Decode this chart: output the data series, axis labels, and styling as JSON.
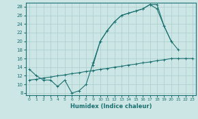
{
  "xlabel": "Humidex (Indice chaleur)",
  "bg_color": "#cce5e5",
  "grid_color": "#aacccc",
  "line_color": "#1a7070",
  "xlim": [
    -0.5,
    23.5
  ],
  "ylim": [
    7.5,
    29
  ],
  "xticks": [
    0,
    1,
    2,
    3,
    4,
    5,
    6,
    7,
    8,
    9,
    10,
    11,
    12,
    13,
    14,
    15,
    16,
    17,
    18,
    19,
    20,
    21,
    22,
    23
  ],
  "yticks": [
    8,
    10,
    12,
    14,
    16,
    18,
    20,
    22,
    24,
    26,
    28
  ],
  "line_main_x": [
    0,
    1,
    2,
    3,
    4,
    5,
    6,
    7,
    8,
    9,
    10,
    11,
    12,
    13,
    14,
    15,
    16,
    17,
    18,
    19,
    20,
    21
  ],
  "line_main_y": [
    13.5,
    12.0,
    11.0,
    11.0,
    9.5,
    11.0,
    8.0,
    8.5,
    10.0,
    15.0,
    20.0,
    22.5,
    24.5,
    26.0,
    26.5,
    27.0,
    27.5,
    28.5,
    27.5,
    23.5,
    20.0,
    18.0
  ],
  "line_upper_x": [
    9,
    10,
    11,
    12,
    13,
    14,
    15,
    16,
    17,
    18,
    19,
    20
  ],
  "line_upper_y": [
    14.5,
    20.0,
    22.5,
    24.5,
    26.0,
    26.5,
    27.0,
    27.5,
    28.5,
    28.5,
    23.5,
    20.0
  ],
  "line_lower_x": [
    0,
    1,
    2,
    3,
    4,
    5,
    6,
    7,
    8,
    9,
    10,
    11,
    12,
    13,
    14,
    15,
    16,
    17,
    18,
    19,
    20,
    21,
    22,
    23
  ],
  "line_lower_y": [
    11.0,
    11.2,
    11.5,
    11.7,
    12.0,
    12.2,
    12.5,
    12.7,
    13.0,
    13.2,
    13.5,
    13.7,
    14.0,
    14.2,
    14.5,
    14.7,
    15.0,
    15.2,
    15.5,
    15.7,
    16.0,
    16.0,
    16.0,
    16.0
  ]
}
